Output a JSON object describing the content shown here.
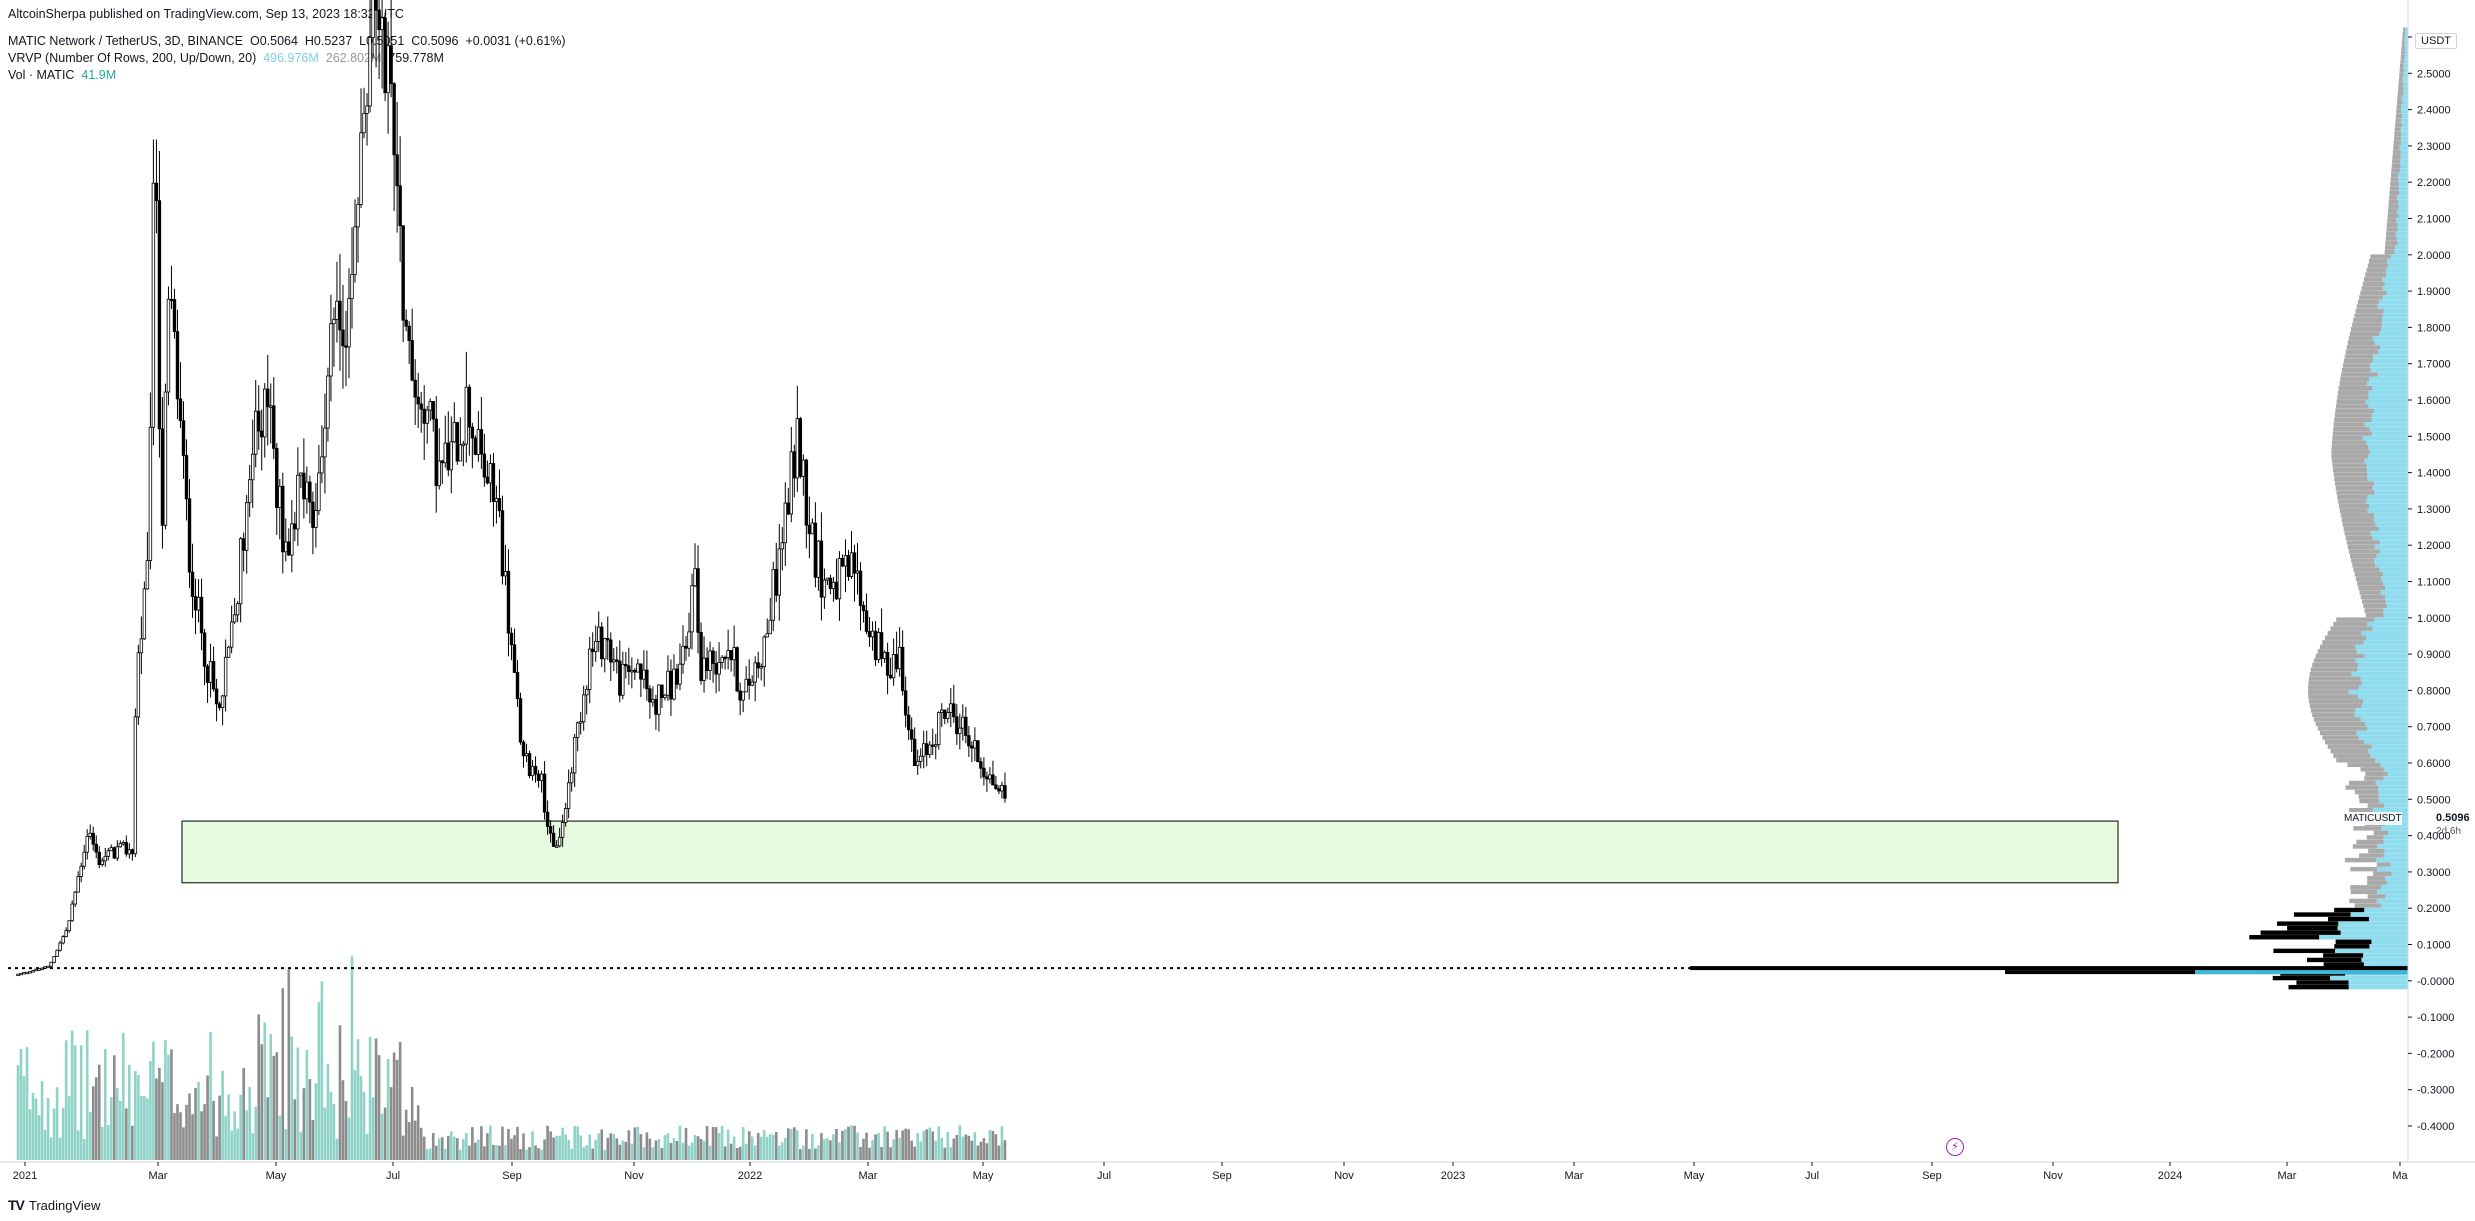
{
  "header": {
    "published": "AltcoinSherpa published on TradingView.com, Sep 13, 2023 18:32 UTC",
    "symbol_line": "MATIC Network / TetherUS, 3D, BINANCE",
    "ohlc": {
      "o": "O0.5064",
      "h": "H0.5237",
      "l": "L0.5051",
      "c": "C0.5096",
      "chg": "+0.0031 (+0.61%)"
    },
    "vrvp_label": "VRVP (Number Of Rows, 200, Up/Down, 20)",
    "vrvp_values": [
      "496.976M",
      "262.802M",
      "759.778M"
    ],
    "vol_label": "Vol · MATIC",
    "vol_value": "41.9M"
  },
  "currency": "USDT",
  "price_tag": {
    "symbol": "MATICUSDT",
    "price": "0.5096",
    "countdown": "2d 6h"
  },
  "footer": {
    "brand": "TradingView"
  },
  "chart_data": {
    "type": "candlestick",
    "y_ticks": [
      "2.6000",
      "2.5000",
      "2.4000",
      "2.3000",
      "2.2000",
      "2.1000",
      "2.0000",
      "1.9000",
      "1.8000",
      "1.7000",
      "1.6000",
      "1.5000",
      "1.4000",
      "1.3000",
      "1.2000",
      "1.1000",
      "1.0000",
      "0.9000",
      "0.8000",
      "0.7000",
      "0.6000",
      "0.5000",
      "0.4000",
      "0.3000",
      "0.2000",
      "0.1000",
      "-0.0000",
      "-0.1000",
      "-0.2000",
      "-0.3000",
      "-0.4000"
    ],
    "x_ticks": [
      "2021",
      "Mar",
      "May",
      "Jul",
      "Sep",
      "Nov",
      "2022",
      "Mar",
      "May",
      "Jul",
      "Sep",
      "Nov",
      "2023",
      "Mar",
      "May",
      "Jul",
      "Sep",
      "Nov",
      "2024",
      "Mar",
      "Ma"
    ],
    "ylim": [
      -0.42,
      2.63
    ],
    "anchors": [
      [
        "2021-01-01",
        0.018
      ],
      [
        "2021-02-01",
        0.04
      ],
      [
        "2021-02-20",
        0.15
      ],
      [
        "2021-03-12",
        0.42
      ],
      [
        "2021-03-22",
        0.33
      ],
      [
        "2021-04-10",
        0.36
      ],
      [
        "2021-04-25",
        0.36
      ],
      [
        "2021-04-29",
        0.85
      ],
      [
        "2021-05-10",
        1.1
      ],
      [
        "2021-05-18",
        2.4
      ],
      [
        "2021-05-24",
        1.2
      ],
      [
        "2021-06-01",
        1.9
      ],
      [
        "2021-06-10",
        1.6
      ],
      [
        "2021-06-20",
        1.2
      ],
      [
        "2021-06-30",
        1.0
      ],
      [
        "2021-07-20",
        0.72
      ],
      [
        "2021-08-05",
        1.0
      ],
      [
        "2021-08-20",
        1.4
      ],
      [
        "2021-09-05",
        1.65
      ],
      [
        "2021-09-25",
        1.15
      ],
      [
        "2021-10-08",
        1.4
      ],
      [
        "2021-10-25",
        1.25
      ],
      [
        "2021-11-10",
        1.9
      ],
      [
        "2021-11-25",
        1.7
      ],
      [
        "2021-12-10",
        2.3
      ],
      [
        "2021-12-25",
        2.75
      ],
      [
        "2022-01-10",
        2.4
      ],
      [
        "2022-01-25",
        1.7
      ],
      [
        "2022-02-10",
        1.6
      ],
      [
        "2022-02-25",
        1.4
      ],
      [
        "2022-03-10",
        1.45
      ],
      [
        "2022-03-25",
        1.6
      ],
      [
        "2022-04-05",
        1.45
      ],
      [
        "2022-04-25",
        1.3
      ],
      [
        "2022-05-10",
        0.85
      ],
      [
        "2022-05-20",
        0.6
      ],
      [
        "2022-06-05",
        0.58
      ],
      [
        "2022-06-18",
        0.35
      ],
      [
        "2022-06-28",
        0.43
      ],
      [
        "2022-07-10",
        0.65
      ],
      [
        "2022-07-25",
        0.9
      ],
      [
        "2022-08-10",
        0.95
      ],
      [
        "2022-08-25",
        0.82
      ],
      [
        "2022-09-10",
        0.88
      ],
      [
        "2022-09-25",
        0.76
      ],
      [
        "2022-10-15",
        0.82
      ],
      [
        "2022-10-31",
        0.9
      ],
      [
        "2022-11-05",
        1.2
      ],
      [
        "2022-11-12",
        0.87
      ],
      [
        "2022-11-25",
        0.88
      ],
      [
        "2022-12-10",
        0.93
      ],
      [
        "2022-12-25",
        0.78
      ],
      [
        "2023-01-15",
        0.93
      ],
      [
        "2023-02-01",
        1.2
      ],
      [
        "2023-02-17",
        1.5
      ],
      [
        "2023-03-05",
        1.2
      ],
      [
        "2023-03-15",
        1.1
      ],
      [
        "2023-04-01",
        1.1
      ],
      [
        "2023-04-15",
        1.14
      ],
      [
        "2023-04-25",
        1.0
      ],
      [
        "2023-05-15",
        0.87
      ],
      [
        "2023-05-31",
        0.9
      ],
      [
        "2023-06-10",
        0.65
      ],
      [
        "2023-06-15",
        0.58
      ],
      [
        "2023-06-30",
        0.66
      ],
      [
        "2023-07-15",
        0.75
      ],
      [
        "2023-08-01",
        0.7
      ],
      [
        "2023-08-15",
        0.62
      ],
      [
        "2023-08-30",
        0.55
      ],
      [
        "2023-09-13",
        0.51
      ]
    ],
    "volume_note": "3D volume bars, up/down colored",
    "support_zone": {
      "low": 0.27,
      "high": 0.44
    },
    "dotted_level": 0.035
  }
}
